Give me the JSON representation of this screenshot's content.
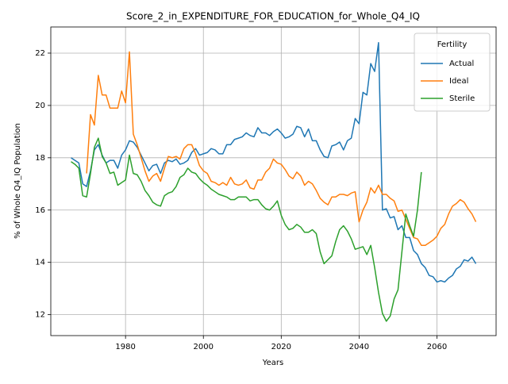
{
  "chart_data": {
    "type": "line",
    "title": "Score_2_in_EXPENDITURE_FOR_EDUCATION_for_Whole_Q4_IQ",
    "xlabel": "Years",
    "ylabel": "% of Whole Q4_IQ Population",
    "legend_title": "Fertility",
    "legend_loc": "upper right",
    "grid": true,
    "xlim": [
      1960.8,
      2075.2
    ],
    "ylim": [
      11.2,
      23.0
    ],
    "xticks": [
      1980,
      2000,
      2020,
      2040,
      2060
    ],
    "yticks": [
      12,
      14,
      16,
      18,
      20,
      22
    ],
    "x": [
      1966,
      1967,
      1968,
      1969,
      1970,
      1971,
      1972,
      1973,
      1974,
      1975,
      1976,
      1977,
      1978,
      1979,
      1980,
      1981,
      1982,
      1983,
      1984,
      1985,
      1986,
      1987,
      1988,
      1989,
      1990,
      1991,
      1992,
      1993,
      1994,
      1995,
      1996,
      1997,
      1998,
      1999,
      2000,
      2001,
      2002,
      2003,
      2004,
      2005,
      2006,
      2007,
      2008,
      2009,
      2010,
      2011,
      2012,
      2013,
      2014,
      2015,
      2016,
      2017,
      2018,
      2019,
      2020,
      2021,
      2022,
      2023,
      2024,
      2025,
      2026,
      2027,
      2028,
      2029,
      2030,
      2031,
      2032,
      2033,
      2034,
      2035,
      2036,
      2037,
      2038,
      2039,
      2040,
      2041,
      2042,
      2043,
      2044,
      2045,
      2046,
      2047,
      2048,
      2049,
      2050,
      2051,
      2052,
      2053,
      2054,
      2055,
      2056,
      2057,
      2058,
      2059,
      2060,
      2061,
      2062,
      2063,
      2064,
      2065,
      2066,
      2067,
      2068,
      2069,
      2070
    ],
    "series": [
      {
        "name": "Actual",
        "color": "#1f77b4",
        "values": [
          18.0,
          17.9,
          17.8,
          17.0,
          16.9,
          17.5,
          18.3,
          18.5,
          18.1,
          17.8,
          17.9,
          17.9,
          17.6,
          18.1,
          18.3,
          18.65,
          18.6,
          18.4,
          18.1,
          17.8,
          17.5,
          17.7,
          17.75,
          17.4,
          17.8,
          17.9,
          17.85,
          17.95,
          17.75,
          17.8,
          17.9,
          18.2,
          18.35,
          18.1,
          18.15,
          18.2,
          18.35,
          18.3,
          18.15,
          18.15,
          18.5,
          18.5,
          18.7,
          18.75,
          18.8,
          18.95,
          18.85,
          18.8,
          19.15,
          18.95,
          18.95,
          18.85,
          19.0,
          19.1,
          18.95,
          18.75,
          18.8,
          18.9,
          19.2,
          19.15,
          18.8,
          19.1,
          18.65,
          18.65,
          18.3,
          18.05,
          18.0,
          18.45,
          18.5,
          18.6,
          18.3,
          18.65,
          18.75,
          19.5,
          19.3,
          20.5,
          20.4,
          21.6,
          21.3,
          22.4,
          16.0,
          16.05,
          15.7,
          15.75,
          15.25,
          15.4,
          14.95,
          14.95,
          14.45,
          14.3,
          13.95,
          13.8,
          13.5,
          13.45,
          13.25,
          13.3,
          13.25,
          13.4,
          13.5,
          13.75,
          13.85,
          14.1,
          14.05,
          14.2,
          13.95
        ]
      },
      {
        "name": "Ideal",
        "color": "#ff7f0e",
        "values": [
          null,
          null,
          null,
          null,
          17.4,
          19.65,
          19.25,
          21.15,
          20.4,
          20.4,
          19.9,
          19.9,
          19.9,
          20.55,
          20.1,
          22.05,
          18.9,
          18.5,
          18.0,
          17.5,
          17.1,
          17.3,
          17.4,
          17.1,
          17.6,
          18.05,
          18.0,
          18.05,
          17.95,
          18.35,
          18.5,
          18.5,
          18.15,
          17.7,
          17.5,
          17.4,
          17.1,
          17.05,
          16.95,
          17.05,
          16.95,
          17.25,
          17.0,
          16.95,
          17.0,
          17.15,
          16.85,
          16.8,
          17.15,
          17.15,
          17.45,
          17.6,
          17.95,
          17.8,
          17.75,
          17.55,
          17.3,
          17.2,
          17.45,
          17.3,
          16.95,
          17.1,
          17.0,
          16.75,
          16.45,
          16.3,
          16.2,
          16.5,
          16.5,
          16.6,
          16.6,
          16.55,
          16.65,
          16.7,
          15.55,
          16.0,
          16.3,
          16.85,
          16.65,
          16.95,
          16.6,
          16.6,
          16.45,
          16.35,
          15.95,
          16.0,
          15.65,
          15.3,
          14.95,
          14.9,
          14.65,
          14.65,
          14.75,
          14.85,
          15.0,
          15.3,
          15.45,
          15.85,
          16.15,
          16.25,
          16.4,
          16.3,
          16.05,
          15.85,
          15.55
        ]
      },
      {
        "name": "Sterile",
        "color": "#2ca02c",
        "values": [
          17.85,
          17.75,
          17.6,
          16.55,
          16.5,
          17.4,
          18.4,
          18.75,
          18.05,
          17.8,
          17.4,
          17.45,
          16.95,
          17.05,
          17.15,
          18.1,
          17.4,
          17.35,
          17.1,
          16.75,
          16.55,
          16.3,
          16.2,
          16.15,
          16.55,
          16.65,
          16.7,
          16.9,
          17.25,
          17.35,
          17.6,
          17.45,
          17.4,
          17.2,
          17.05,
          16.95,
          16.8,
          16.7,
          16.6,
          16.55,
          16.5,
          16.4,
          16.4,
          16.5,
          16.5,
          16.5,
          16.35,
          16.4,
          16.4,
          16.2,
          16.05,
          16.0,
          16.15,
          16.35,
          15.8,
          15.45,
          15.25,
          15.3,
          15.45,
          15.35,
          15.15,
          15.15,
          15.25,
          15.1,
          14.4,
          13.95,
          14.1,
          14.25,
          14.8,
          15.25,
          15.4,
          15.2,
          14.9,
          14.5,
          14.55,
          14.6,
          14.3,
          14.65,
          13.8,
          12.85,
          12.05,
          11.75,
          11.95,
          12.6,
          12.95,
          14.4,
          15.85,
          15.4,
          15.0,
          16.0,
          17.45,
          null,
          null,
          null,
          null,
          null,
          null,
          null,
          null,
          null,
          null,
          null,
          null,
          null,
          null
        ]
      }
    ]
  }
}
